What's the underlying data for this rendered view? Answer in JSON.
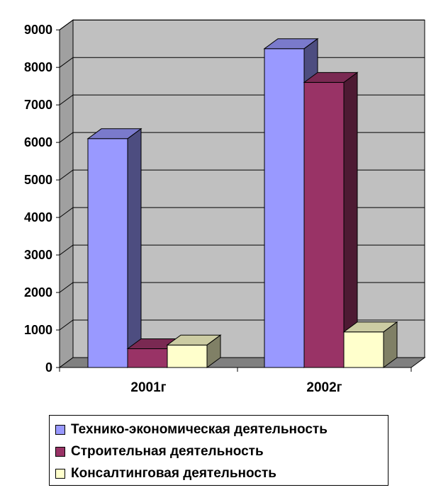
{
  "chart_data": {
    "type": "bar",
    "categories": [
      "2001г",
      "2002г"
    ],
    "series": [
      {
        "name": "Технико-экономическая деятельность",
        "values": [
          6100,
          8500
        ],
        "color": "#9999ff",
        "side_color": "#4d4d80",
        "top_color": "#7a7acc"
      },
      {
        "name": "Строительная деятельность",
        "values": [
          500,
          7600
        ],
        "color": "#993366",
        "side_color": "#4d1a33",
        "top_color": "#7a2952"
      },
      {
        "name": "Консалтинговая деятельность",
        "values": [
          600,
          950
        ],
        "color": "#ffffcc",
        "side_color": "#808066",
        "top_color": "#cccca3"
      }
    ],
    "ylim": [
      0,
      9000
    ],
    "yticks": [
      "0",
      "1000",
      "2000",
      "3000",
      "4000",
      "5000",
      "6000",
      "7000",
      "8000",
      "9000"
    ],
    "grid": true,
    "legend_position": "bottom",
    "wall_color": "#c0c0c0",
    "floor_color": "#808080"
  }
}
